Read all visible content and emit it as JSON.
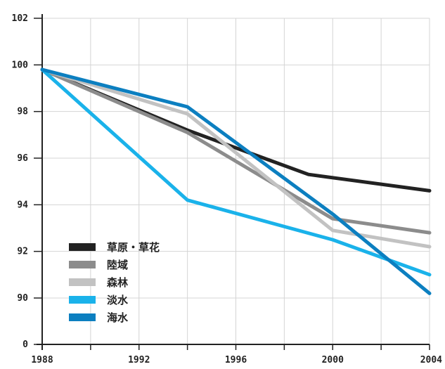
{
  "chart_data": {
    "type": "line",
    "title": "",
    "xlabel": "",
    "ylabel": "",
    "x": [
      1988,
      1994,
      1999,
      2004
    ],
    "xticks": [
      "1988",
      "1992",
      "1996",
      "2000",
      "2004"
    ],
    "yticks": [
      "0",
      "90",
      "92",
      "94",
      "96",
      "98",
      "100",
      "102"
    ],
    "xlim": [
      1988,
      2004
    ],
    "ylim": [
      89,
      102
    ],
    "y_axis_break": true,
    "grid": true,
    "legend_position": "bottom-left",
    "series": [
      {
        "name": "草原・草花",
        "color": "#222222",
        "width": 5,
        "points": [
          [
            1988,
            99.8
          ],
          [
            1994,
            97.2
          ],
          [
            1999,
            95.3
          ],
          [
            2004,
            94.6
          ]
        ]
      },
      {
        "name": "陸域",
        "color": "#8c8c8c",
        "width": 5,
        "points": [
          [
            1988,
            99.8
          ],
          [
            1994,
            97.1
          ],
          [
            2000,
            93.4
          ],
          [
            2004,
            92.8
          ]
        ]
      },
      {
        "name": "森林",
        "color": "#c2c2c2",
        "width": 5,
        "points": [
          [
            1988,
            99.8
          ],
          [
            1994,
            97.9
          ],
          [
            2000,
            92.9
          ],
          [
            2004,
            92.2
          ]
        ]
      },
      {
        "name": "淡水",
        "color": "#1ab2ea",
        "width": 5,
        "points": [
          [
            1988,
            99.8
          ],
          [
            1994,
            94.2
          ],
          [
            2000,
            92.5
          ],
          [
            2004,
            91.0
          ]
        ]
      },
      {
        "name": "海水",
        "color": "#0c7fc0",
        "width": 5,
        "points": [
          [
            1988,
            99.8
          ],
          [
            1994,
            98.2
          ],
          [
            2000,
            93.6
          ],
          [
            2004,
            90.2
          ]
        ]
      }
    ]
  }
}
